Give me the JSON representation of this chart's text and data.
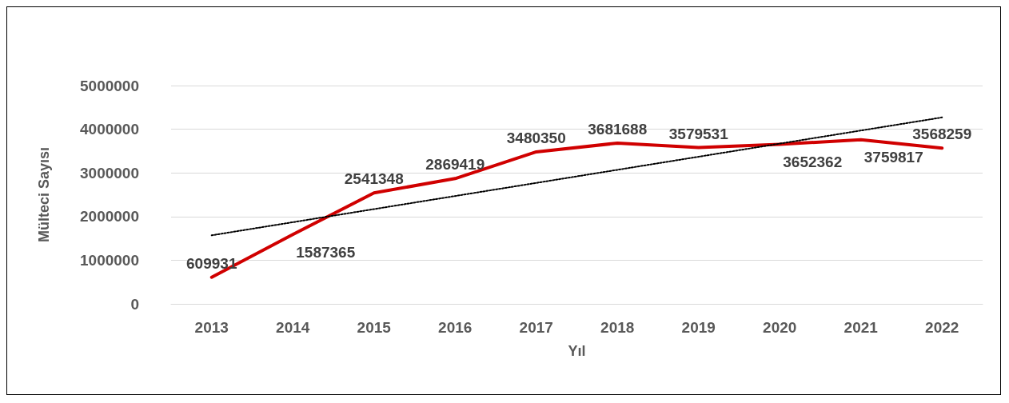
{
  "chart_data": {
    "type": "line",
    "xlabel": "Yıl",
    "ylabel": "Mülteci Sayısı",
    "categories": [
      "2013",
      "2014",
      "2015",
      "2016",
      "2017",
      "2018",
      "2019",
      "2020",
      "2021",
      "2022"
    ],
    "series": [
      {
        "color": "#d00000",
        "values": [
          609931,
          1587365,
          2541348,
          2869419,
          3480350,
          3681688,
          3579531,
          3652362,
          3759817,
          3568259
        ],
        "value_labels": [
          "609931",
          "1587365",
          "2541348",
          "2869419",
          "3480350",
          "3681688",
          "3579531",
          "3652362",
          "3759817",
          "3568259"
        ]
      },
      {
        "type": "line",
        "color": "#000000",
        "line_style": "dotted",
        "values": [
          1570000,
          null,
          null,
          null,
          null,
          null,
          null,
          null,
          null,
          4270000
        ]
      }
    ],
    "ylim": [
      0,
      5000000
    ],
    "yticks": [
      0,
      1000000,
      2000000,
      3000000,
      4000000,
      5000000
    ],
    "grid": "y",
    "marker": "none",
    "line_style": "solid"
  }
}
